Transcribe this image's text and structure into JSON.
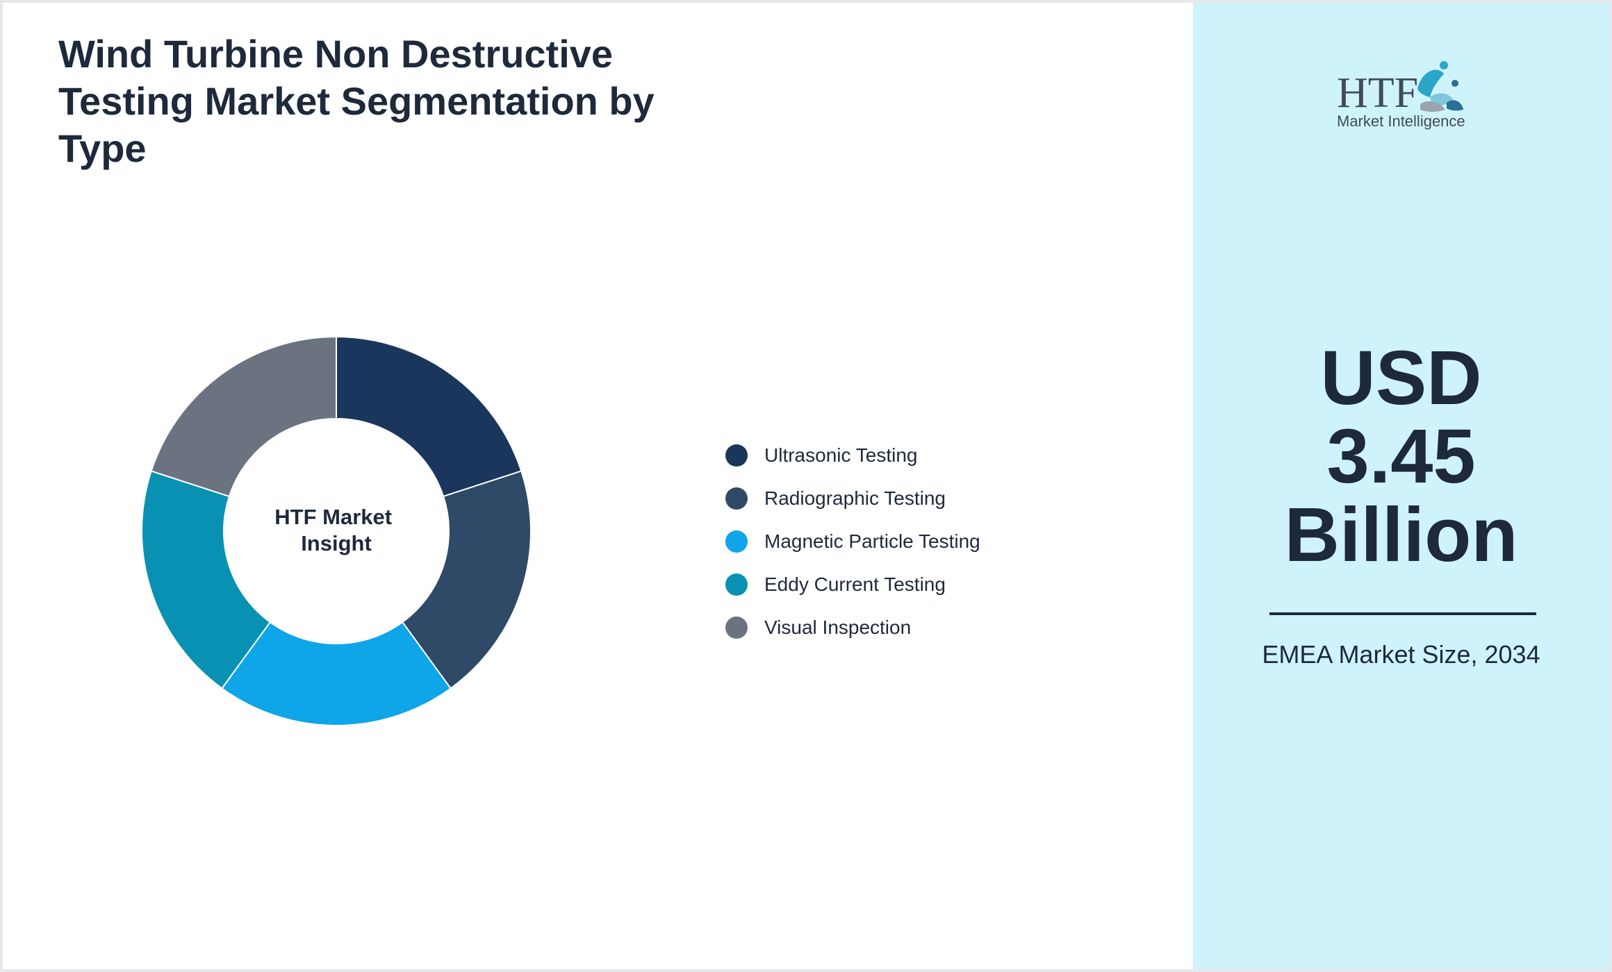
{
  "title": "Wind Turbine Non Destructive Testing Market Segmentation by Type",
  "chart_data": {
    "type": "pie",
    "style": "donut",
    "center_label": [
      "HTF Market",
      "Insight"
    ],
    "categories": [
      "Ultrasonic Testing",
      "Radiographic Testing",
      "Magnetic Particle Testing",
      "Eddy Current Testing",
      "Visual Inspection"
    ],
    "values": [
      20,
      20,
      20,
      20,
      20
    ],
    "colors": [
      "#1b365d",
      "#2e4a66",
      "#0ea5e9",
      "#0891b2",
      "#6b7280"
    ],
    "legend_position": "right"
  },
  "side_panel": {
    "logo_text": "HTF",
    "logo_subtext": "Market Intelligence",
    "value_lines": [
      "USD",
      "3.45",
      "Billion"
    ],
    "caption": "EMEA Market Size, 2034",
    "background": "#cef3fb"
  }
}
